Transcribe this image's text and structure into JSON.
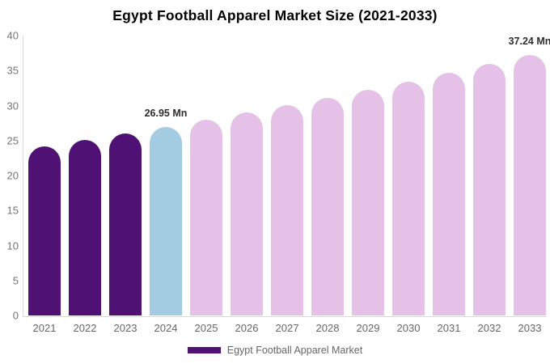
{
  "chart_data": {
    "type": "bar",
    "title": "Egypt Football Apparel Market Size (2021-2033)",
    "xlabel": "",
    "ylabel": "",
    "unit": "Mn",
    "ylim": [
      0,
      40
    ],
    "yticks": [
      0,
      5,
      10,
      15,
      20,
      25,
      30,
      35,
      40
    ],
    "grid": "off",
    "legend_position": "bottom-center",
    "categories": [
      "2021",
      "2022",
      "2023",
      "2024",
      "2025",
      "2026",
      "2027",
      "2028",
      "2029",
      "2030",
      "2031",
      "2032",
      "2033"
    ],
    "values": [
      24.19,
      25.08,
      26.0,
      26.95,
      27.94,
      28.96,
      30.02,
      31.12,
      32.26,
      33.44,
      34.66,
      35.93,
      37.24
    ],
    "bars": [
      {
        "year": "2021",
        "value": 24.19,
        "role": "past"
      },
      {
        "year": "2022",
        "value": 25.08,
        "role": "past"
      },
      {
        "year": "2023",
        "value": 26.0,
        "role": "past"
      },
      {
        "year": "2024",
        "value": 26.95,
        "role": "current",
        "label": "26.95 Mn"
      },
      {
        "year": "2025",
        "value": 27.94,
        "role": "forecast"
      },
      {
        "year": "2026",
        "value": 28.96,
        "role": "forecast"
      },
      {
        "year": "2027",
        "value": 30.02,
        "role": "forecast"
      },
      {
        "year": "2028",
        "value": 31.12,
        "role": "forecast"
      },
      {
        "year": "2029",
        "value": 32.26,
        "role": "forecast"
      },
      {
        "year": "2030",
        "value": 33.44,
        "role": "forecast"
      },
      {
        "year": "2031",
        "value": 34.66,
        "role": "forecast"
      },
      {
        "year": "2032",
        "value": 35.93,
        "role": "forecast"
      },
      {
        "year": "2033",
        "value": 37.24,
        "role": "forecast",
        "label": "37.24 Mn"
      }
    ],
    "colors": {
      "past": "#4f1274",
      "current": "#a3cbe1",
      "forecast": "#e5c1e8",
      "axis_line": "#d9d9d9",
      "tick_text": "#757575",
      "category_text": "#666666",
      "title_text": "#000000",
      "point_label_text": "#2e2e2e"
    },
    "legend": [
      {
        "label": "Egypt Football Apparel Market",
        "color": "#4f1274"
      }
    ]
  }
}
